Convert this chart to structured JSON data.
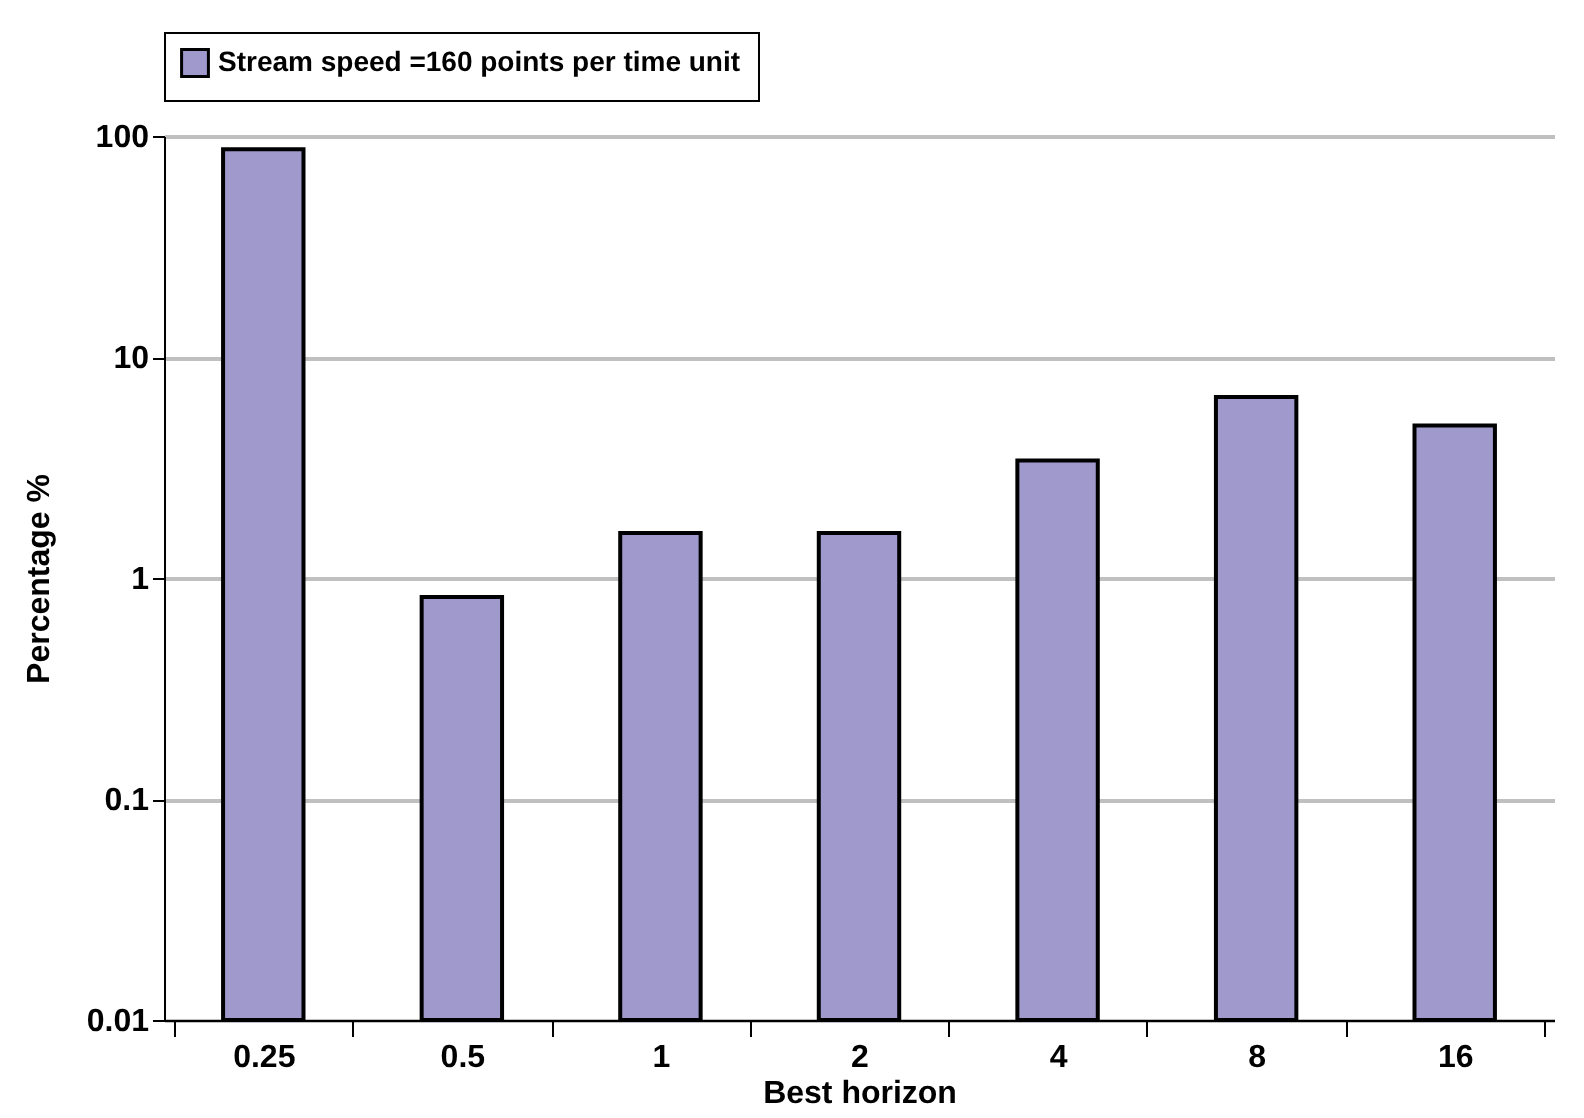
{
  "chart_data": {
    "type": "bar",
    "xlabel": "Best horizon",
    "ylabel": "Percentage %",
    "categories": [
      "0.25",
      "0.5",
      "1",
      "2",
      "4",
      "8",
      "16"
    ],
    "series": [
      {
        "name": "Stream speed =160 points per time unit",
        "color": "#9f99cc",
        "values": [
          87,
          0.82,
          1.6,
          1.6,
          3.4,
          6.6,
          4.9
        ]
      }
    ],
    "log": true,
    "ylim": [
      0.01,
      100
    ],
    "yticks": [
      0.01,
      0.1,
      1,
      10,
      100
    ],
    "grid": "y",
    "legend": "top"
  }
}
